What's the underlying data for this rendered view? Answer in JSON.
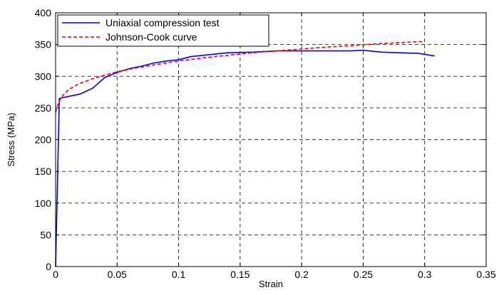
{
  "chart_data": {
    "type": "line",
    "title": "",
    "xlabel": "Strain",
    "ylabel": "Stress (MPa)",
    "xlim": [
      0,
      0.35
    ],
    "ylim": [
      0,
      400
    ],
    "xticks": [
      0,
      0.05,
      0.1,
      0.15,
      0.2,
      0.25,
      0.3,
      0.35
    ],
    "xtick_labels": [
      "0",
      "0.05",
      "0.1",
      "0.15",
      "0.2",
      "0.25",
      "0.3",
      "0.35"
    ],
    "yticks": [
      0,
      50,
      100,
      150,
      200,
      250,
      300,
      350,
      400
    ],
    "ytick_labels": [
      "0",
      "50",
      "100",
      "150",
      "200",
      "250",
      "300",
      "350",
      "400"
    ],
    "grid": true,
    "legend_position": "top-left",
    "series": [
      {
        "name": "Uniaxial compression test",
        "color": "#0000ff",
        "style": "solid",
        "x": [
          0,
          0.003,
          0.01,
          0.02,
          0.03,
          0.04,
          0.05,
          0.06,
          0.07,
          0.08,
          0.09,
          0.1,
          0.11,
          0.12,
          0.14,
          0.16,
          0.18,
          0.2,
          0.22,
          0.24,
          0.25,
          0.265,
          0.28,
          0.295,
          0.308
        ],
        "y": [
          0,
          265,
          268,
          272,
          281,
          298,
          306,
          312,
          316,
          321,
          324,
          326,
          331,
          333,
          337,
          338,
          340,
          340,
          340,
          340,
          341,
          338,
          337,
          336,
          332
        ]
      },
      {
        "name": "Johnson-Cook curve",
        "color": "#ff0000",
        "style": "dashed",
        "x": [
          0,
          0.001,
          0.002,
          0.004,
          0.007,
          0.01,
          0.015,
          0.02,
          0.03,
          0.04,
          0.05,
          0.06,
          0.08,
          0.1,
          0.12,
          0.14,
          0.16,
          0.18,
          0.2,
          0.22,
          0.24,
          0.26,
          0.28,
          0.3
        ],
        "y": [
          243,
          250,
          256,
          265,
          272,
          278,
          284,
          289,
          296,
          302,
          307,
          311,
          318,
          324,
          329,
          333,
          337,
          340,
          343,
          346,
          348,
          351,
          353,
          355
        ]
      }
    ]
  }
}
